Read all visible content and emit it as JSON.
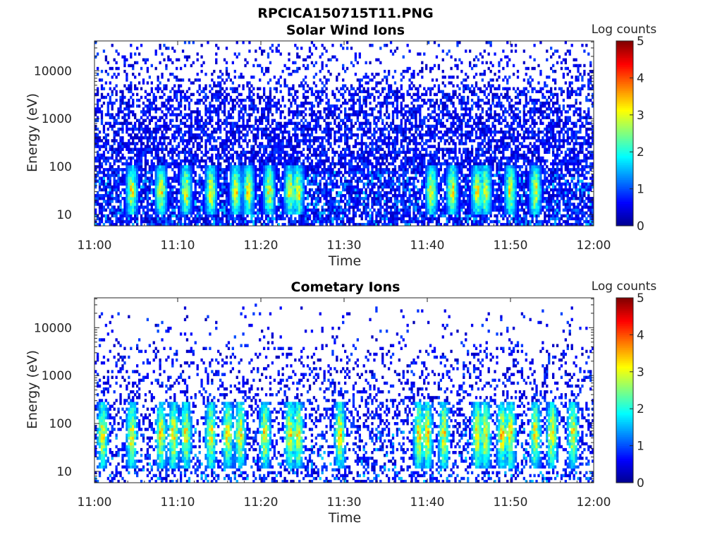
{
  "figure_title": "RPCICA150715T11.PNG",
  "colormap": [
    "#00008f",
    "#0000ff",
    "#0080ff",
    "#00ffff",
    "#80ff80",
    "#ffff00",
    "#ff8000",
    "#ff0000",
    "#800000"
  ],
  "chart_data": [
    {
      "type": "heatmap",
      "title": "Solar Wind Ions",
      "xlabel": "Time",
      "ylabel": "Energy (eV)",
      "x_ticks": [
        "11:00",
        "11:10",
        "11:20",
        "11:30",
        "11:40",
        "11:50",
        "12:00"
      ],
      "y_ticks": [
        "10",
        "100",
        "1000",
        "10000"
      ],
      "y_tick_values": [
        10,
        100,
        1000,
        10000
      ],
      "y_scale": "log",
      "ylim": [
        5.8,
        42000
      ],
      "colorbar": {
        "label": "Log counts",
        "ticks": [
          "0",
          "1",
          "2",
          "3",
          "4",
          "5"
        ],
        "range": [
          0,
          5
        ]
      },
      "n_time_bins": 240,
      "n_energy_bins": 64,
      "density_profile": {
        "low_energy_fill": 0.75,
        "mid_energy_fill": 0.45,
        "high_energy_fill": 0.08
      },
      "bright_times_min": [
        4.5,
        8,
        11,
        14,
        17,
        18.5,
        21,
        23.5,
        24.5,
        40.5,
        43,
        46,
        47,
        50,
        53
      ],
      "bright_energy_range_ev": [
        10,
        100
      ]
    },
    {
      "type": "heatmap",
      "title": "Cometary Ions",
      "xlabel": "Time",
      "ylabel": "Energy (eV)",
      "x_ticks": [
        "11:00",
        "11:10",
        "11:20",
        "11:30",
        "11:40",
        "11:50",
        "12:00"
      ],
      "y_ticks": [
        "10",
        "100",
        "1000",
        "10000"
      ],
      "y_tick_values": [
        10,
        100,
        1000,
        10000
      ],
      "y_scale": "log",
      "ylim": [
        5.8,
        42000
      ],
      "colorbar": {
        "label": "Log counts",
        "ticks": [
          "0",
          "1",
          "2",
          "3",
          "4",
          "5"
        ],
        "range": [
          0,
          5
        ]
      },
      "n_time_bins": 240,
      "n_energy_bins": 64,
      "density_profile": {
        "low_energy_fill": 0.35,
        "mid_energy_fill": 0.12,
        "high_energy_fill": 0.01
      },
      "bright_times_min": [
        1,
        4.5,
        8,
        9.5,
        11,
        14,
        16,
        17.5,
        20.5,
        23.5,
        24.5,
        29.5,
        39,
        40,
        42,
        46,
        47,
        49,
        50,
        53,
        55,
        57.5
      ],
      "bright_energy_range_ev": [
        12,
        300
      ]
    }
  ]
}
